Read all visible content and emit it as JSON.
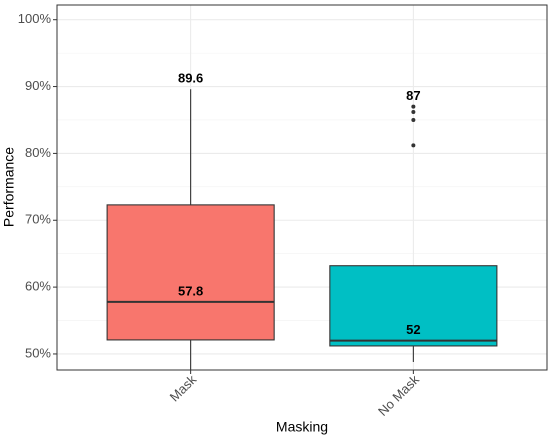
{
  "chart_data": {
    "type": "box",
    "x_label": "Masking",
    "y_label": "Performance",
    "categories": [
      "Mask",
      "No Mask"
    ],
    "series": [
      {
        "name": "Mask",
        "color": "#F8766D",
        "whisker_low": 47.6,
        "q1": 52.1,
        "median": 57.8,
        "q3": 72.3,
        "whisker_high": 89.6,
        "outliers": []
      },
      {
        "name": "No Mask",
        "color": "#00BFC4",
        "whisker_low": 48.8,
        "q1": 51.2,
        "median": 52,
        "q3": 63.2,
        "whisker_high": 63.2,
        "outliers": [
          81.2,
          85,
          86.2,
          87
        ]
      }
    ],
    "ylim": [
      47.6,
      102.2
    ],
    "yticks": [
      {
        "value": 50,
        "label": "50%"
      },
      {
        "value": 60,
        "label": "60%"
      },
      {
        "value": 70,
        "label": "70%"
      },
      {
        "value": 80,
        "label": "80%"
      },
      {
        "value": 90,
        "label": "90%"
      },
      {
        "value": 100,
        "label": "100%"
      }
    ],
    "y_minor_ticks": [
      55,
      65,
      75,
      85,
      95
    ],
    "grid": true
  }
}
